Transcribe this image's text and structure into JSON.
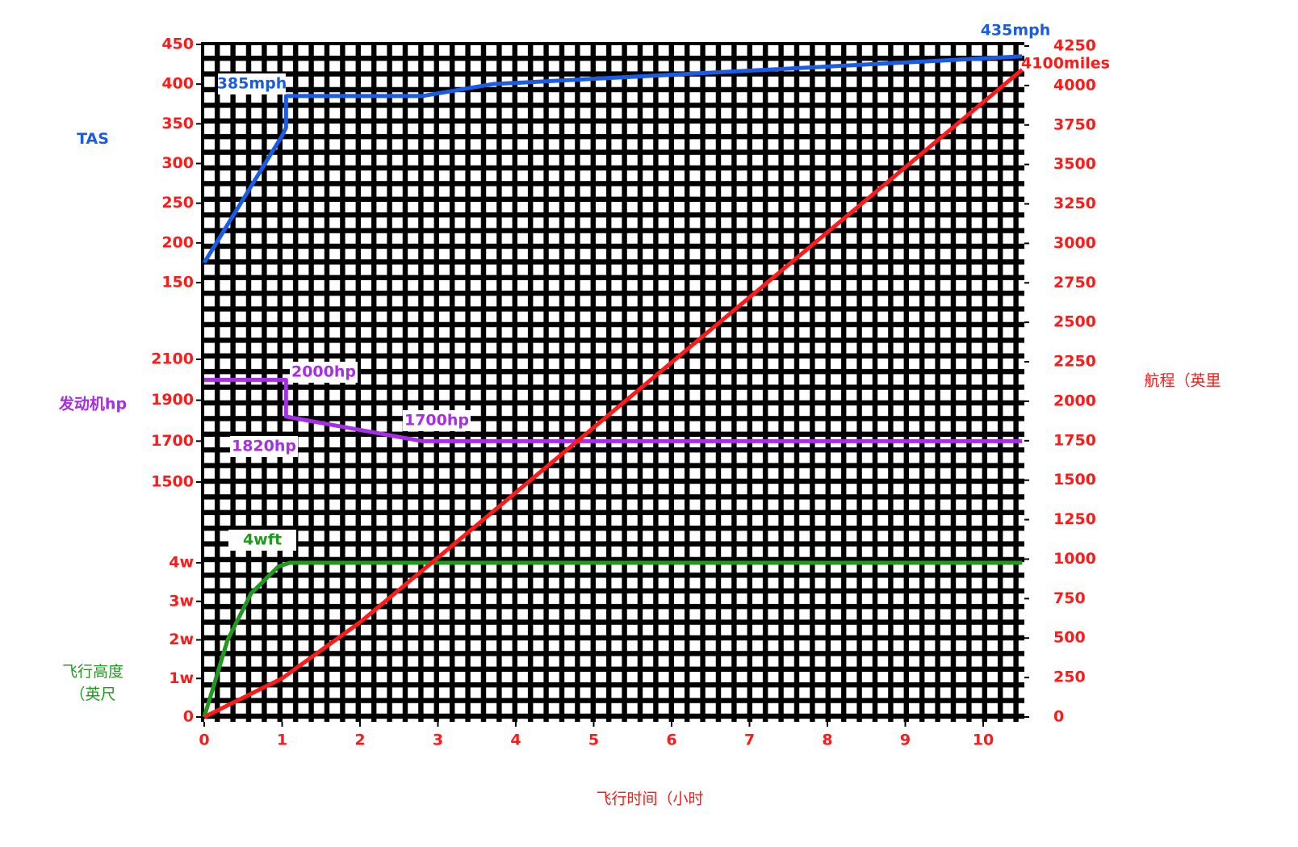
{
  "chart_data": {
    "type": "line",
    "x_label": "飞行时间（小时",
    "xlim": [
      0,
      10.5
    ],
    "xticks": [
      0,
      1,
      2,
      3,
      4,
      5,
      6,
      7,
      8,
      9,
      10
    ],
    "y_axes": [
      {
        "label": "TAS",
        "color": "#1a5ce6",
        "ylim": [
          150,
          450
        ],
        "yticks": [
          150,
          200,
          250,
          300,
          350,
          400,
          450
        ]
      },
      {
        "label": "发动机hp",
        "color": "#a52ee6",
        "ylim": [
          1500,
          2100
        ],
        "yticks": [
          1500,
          1700,
          1900,
          2100
        ]
      },
      {
        "label": [
          "飞行高度",
          "（英尺"
        ],
        "color": "#1f9a1f",
        "ylim": [
          0,
          40000
        ],
        "yticks": [
          0,
          {
            "value": 10000,
            "label": "1w"
          },
          {
            "value": 20000,
            "label": "2w"
          },
          {
            "value": 30000,
            "label": "3w"
          },
          {
            "value": 40000,
            "label": "4w"
          }
        ]
      }
    ],
    "tick_color": "#ff1a1a",
    "y2label": "航程（英里",
    "y2lim": [
      0,
      4250
    ],
    "y2ticks": [
      0,
      250,
      500,
      750,
      1000,
      1250,
      1500,
      1750,
      2000,
      2250,
      2500,
      2750,
      3000,
      3250,
      3500,
      3750,
      4000,
      4250
    ],
    "series": [
      {
        "color": "#1a5ce6",
        "axis": 0,
        "x": [
          0,
          0.5,
          1.0,
          1.05,
          1.05,
          2.8,
          3.7,
          10.5
        ],
        "values": [
          175,
          255,
          335,
          345,
          385,
          385,
          400,
          435
        ]
      },
      {
        "color": "#a52ee6",
        "axis": 1,
        "x": [
          0,
          1.05,
          1.05,
          2.8,
          10.5
        ],
        "values": [
          2000,
          2000,
          1820,
          1700,
          1700
        ]
      },
      {
        "color": "#1f9a1f",
        "axis": 2,
        "x": [
          0,
          0.3,
          0.6,
          0.95,
          1.1,
          10.5
        ],
        "values": [
          0,
          20000,
          32000,
          39000,
          40000,
          40000
        ]
      },
      {
        "color": "#ff1a1a",
        "axis": "y2",
        "x": [
          0,
          1,
          2,
          3,
          4,
          5,
          6,
          7,
          8,
          9,
          10,
          10.5
        ],
        "values": [
          0,
          245,
          600,
          1010,
          1422,
          1834,
          2246,
          2658,
          3070,
          3482,
          3894,
          4100
        ]
      }
    ],
    "annotations": [
      {
        "text": "385mph",
        "color": "#1a5ce6"
      },
      {
        "text": "435mph",
        "color": "#1a5ce6"
      },
      {
        "text": "4100miles",
        "color": "#ff1a1a"
      },
      {
        "text": "2000hp",
        "color": "#a52ee6"
      },
      {
        "text": "1820hp",
        "color": "#a52ee6"
      },
      {
        "text": "1700hp",
        "color": "#a52ee6"
      },
      {
        "text": "4wft",
        "color": "#1f9a1f"
      }
    ]
  }
}
